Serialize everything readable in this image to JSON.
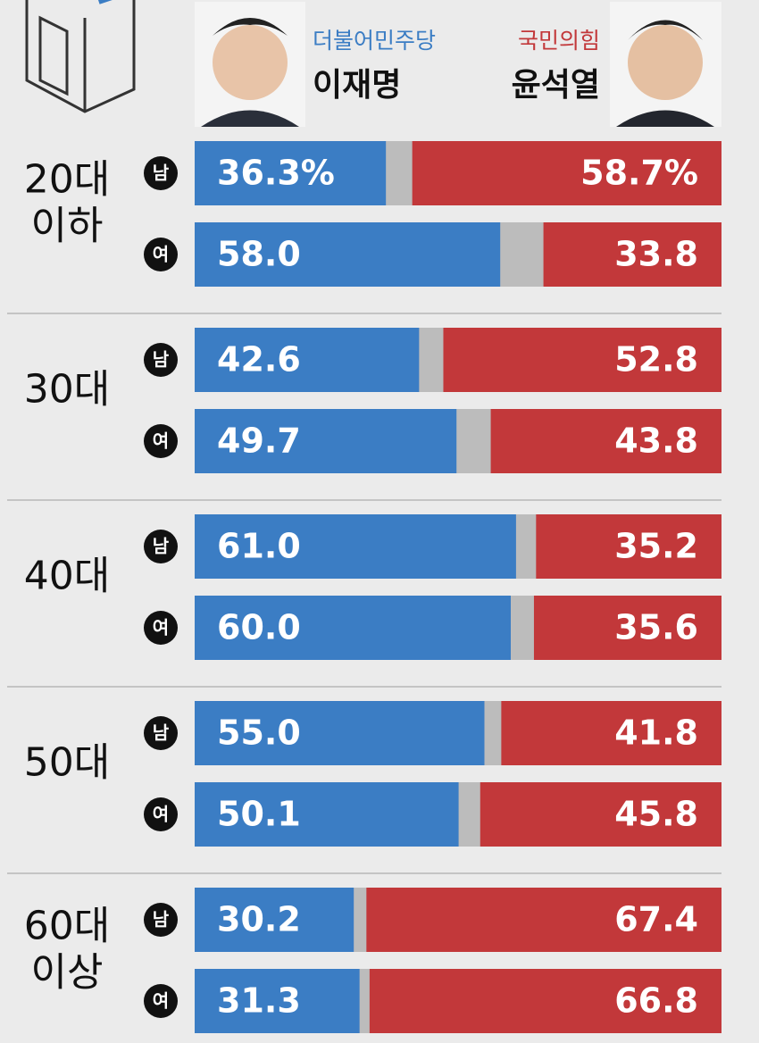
{
  "chart_data": {
    "type": "bar",
    "orientation": "horizontal",
    "groups": [
      [
        "20대",
        "이하"
      ],
      [
        "30대"
      ],
      [
        "40대"
      ],
      [
        "50대"
      ],
      [
        "60대",
        "이상"
      ]
    ],
    "categories": [
      "남",
      "여",
      "남",
      "여",
      "남",
      "여",
      "남",
      "여",
      "남",
      "여"
    ],
    "xlim": [
      0,
      100
    ],
    "series": [
      {
        "name": "이재명",
        "party": "더불어민주당",
        "color": "#3b7dc4",
        "side": "left",
        "values": [
          36.3,
          58.0,
          42.6,
          49.7,
          61.0,
          60.0,
          55.0,
          50.1,
          30.2,
          31.3
        ],
        "value_labels": [
          "36.3%",
          "58.0",
          "42.6",
          "49.7",
          "61.0",
          "60.0",
          "55.0",
          "50.1",
          "30.2",
          "31.3"
        ]
      },
      {
        "name": "윤석열",
        "party": "국민의힘",
        "color": "#c2383a",
        "side": "right",
        "values": [
          58.7,
          33.8,
          52.8,
          43.8,
          35.2,
          35.6,
          41.8,
          45.8,
          67.4,
          66.8
        ],
        "value_labels": [
          "58.7%",
          "33.8",
          "52.8",
          "43.8",
          "35.2",
          "35.6",
          "41.8",
          "45.8",
          "67.4",
          "66.8"
        ]
      }
    ]
  }
}
